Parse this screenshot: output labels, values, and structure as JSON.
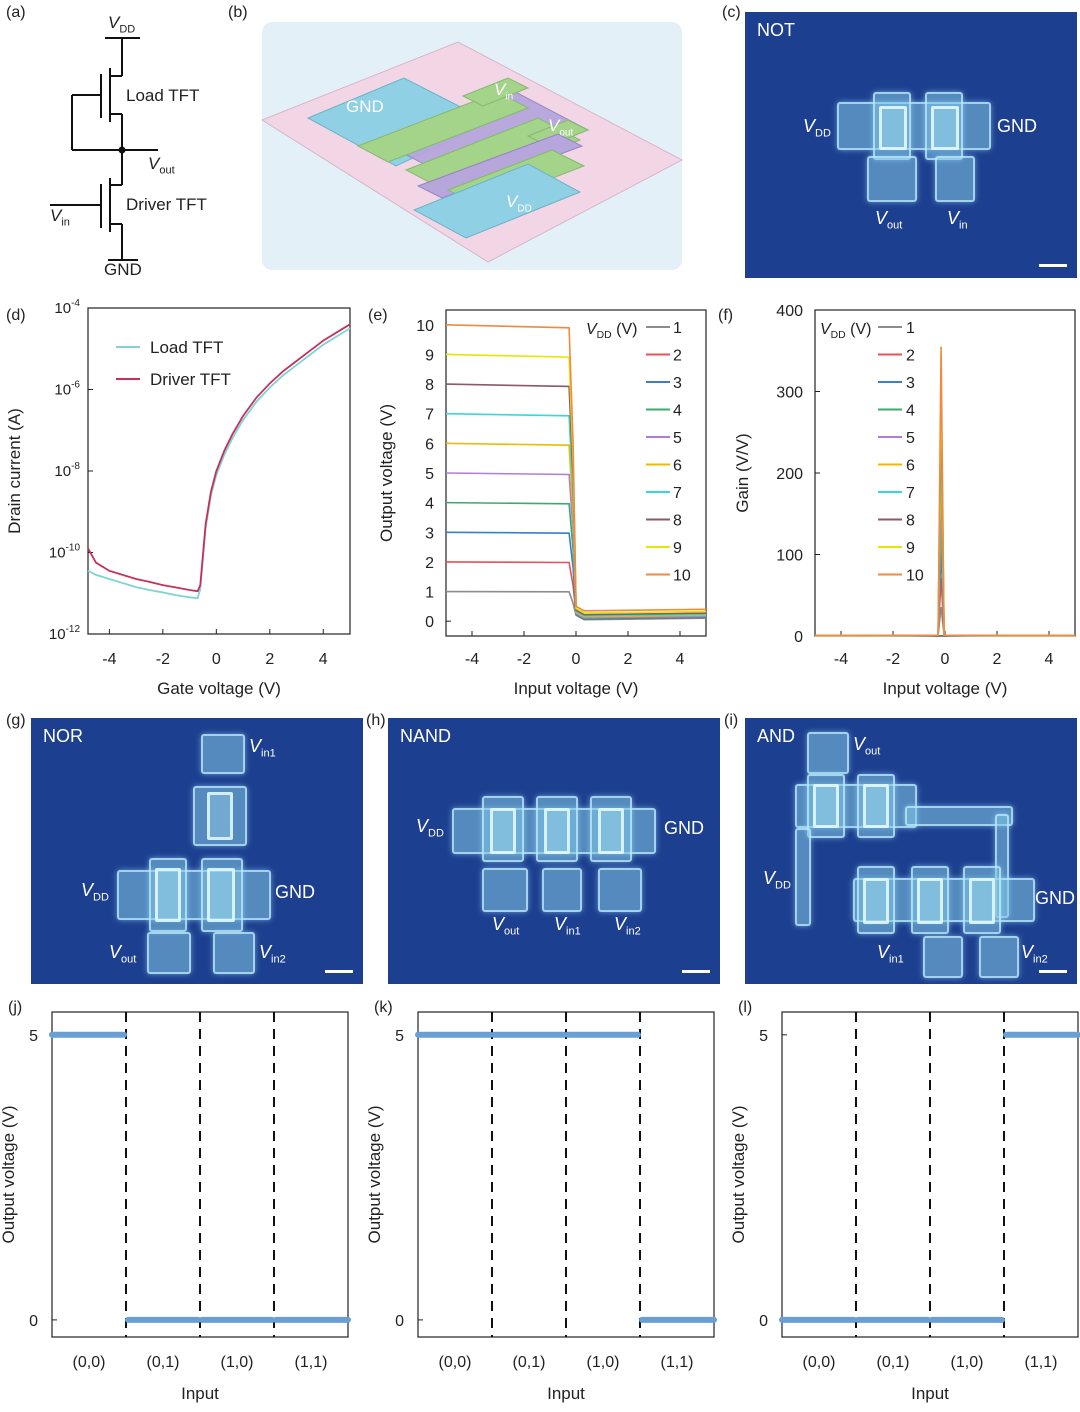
{
  "panels": {
    "a": {
      "label": "(a)",
      "vdd": "V",
      "vdd_sub": "DD",
      "load": "Load TFT",
      "vout": "V",
      "vout_sub": "out",
      "vin": "V",
      "vin_sub": "in",
      "driver": "Driver TFT",
      "gnd": "GND"
    },
    "b": {
      "label": "(b)",
      "gnd": "GND",
      "vin": "V",
      "vin_sub": "in",
      "vout": "V",
      "vout_sub": "out",
      "vdd": "V",
      "vdd_sub": "DD"
    },
    "c": {
      "label": "(c)",
      "title": "NOT",
      "vdd": "V",
      "vdd_sub": "DD",
      "gnd": "GND",
      "vout": "V",
      "vout_sub": "out",
      "vin": "V",
      "vin_sub": "in"
    },
    "g": {
      "label": "(g)",
      "title": "NOR",
      "vin1": "V",
      "vin1_sub": "in1",
      "vdd": "V",
      "vdd_sub": "DD",
      "gnd": "GND",
      "vout": "V",
      "vout_sub": "out",
      "vin2": "V",
      "vin2_sub": "in2"
    },
    "h": {
      "label": "(h)",
      "title": "NAND",
      "vdd": "V",
      "vdd_sub": "DD",
      "gnd": "GND",
      "vout": "V",
      "vout_sub": "out",
      "vin1": "V",
      "vin1_sub": "in1",
      "vin2": "V",
      "vin2_sub": "in2"
    },
    "i": {
      "label": "(i)",
      "title": "AND",
      "vout": "V",
      "vout_sub": "out",
      "vdd": "V",
      "vdd_sub": "DD",
      "gnd": "GND",
      "vin1": "V",
      "vin1_sub": "in1",
      "vin2": "V",
      "vin2_sub": "in2"
    }
  },
  "colors": {
    "micro_bg": "#1d3f8f",
    "load_tft": "#7fd3d6",
    "driver_tft": "#c8305a",
    "logic_trace": "#6a9fd4",
    "vdd_series": [
      "#8c8c8c",
      "#e8505a",
      "#3a7fc8",
      "#3aaa70",
      "#b07cd8",
      "#f0b800",
      "#36d8d8",
      "#8a5a6a",
      "#e6e600",
      "#f08a40"
    ]
  },
  "chart_data": [
    {
      "panel": "(d)",
      "type": "line",
      "xlabel": "Gate voltage (V)",
      "ylabel": "Drain current (A)",
      "xlim": [
        -4.8,
        5
      ],
      "ylim_log10": [
        -12,
        -4
      ],
      "y_scale": "log",
      "xticks": [
        "-4",
        "-2",
        "0",
        "2",
        "4"
      ],
      "yticks": [
        {
          "base": "10",
          "exp": "-4"
        },
        {
          "base": "10",
          "exp": "-6"
        },
        {
          "base": "10",
          "exp": "-8"
        },
        {
          "base": "10",
          "exp": "-10"
        },
        {
          "base": "10",
          "exp": "-12"
        }
      ],
      "legend_position": "top-left",
      "series": [
        {
          "name": "Load TFT",
          "x": [
            -4.8,
            -4.5,
            -4.0,
            -3.5,
            -3.0,
            -2.5,
            -2.0,
            -1.5,
            -1.0,
            -0.7,
            -0.6,
            -0.4,
            -0.2,
            0.0,
            0.3,
            0.6,
            1.0,
            1.5,
            2.0,
            2.5,
            3.0,
            3.5,
            4.0,
            4.5,
            5.0
          ],
          "y_log10": [
            -10.45,
            -10.55,
            -10.65,
            -10.75,
            -10.85,
            -10.92,
            -10.98,
            -11.05,
            -11.1,
            -11.12,
            -10.9,
            -9.4,
            -8.6,
            -8.1,
            -7.6,
            -7.2,
            -6.75,
            -6.3,
            -5.95,
            -5.65,
            -5.4,
            -5.15,
            -4.9,
            -4.7,
            -4.5
          ]
        },
        {
          "name": "Driver TFT",
          "x": [
            -4.8,
            -4.5,
            -4.0,
            -3.5,
            -3.0,
            -2.5,
            -2.0,
            -1.5,
            -1.0,
            -0.7,
            -0.6,
            -0.4,
            -0.2,
            0.0,
            0.3,
            0.6,
            1.0,
            1.5,
            2.0,
            2.5,
            3.0,
            3.5,
            4.0,
            4.5,
            5.0
          ],
          "y_log10": [
            -9.9,
            -10.25,
            -10.45,
            -10.55,
            -10.65,
            -10.72,
            -10.8,
            -10.86,
            -10.92,
            -10.95,
            -10.8,
            -9.3,
            -8.5,
            -8.0,
            -7.5,
            -7.1,
            -6.65,
            -6.2,
            -5.85,
            -5.55,
            -5.3,
            -5.05,
            -4.8,
            -4.6,
            -4.4
          ]
        }
      ]
    },
    {
      "panel": "(e)",
      "type": "line",
      "xlabel": "Input voltage (V)",
      "ylabel": "Output voltage (V)",
      "xlim": [
        -5,
        5
      ],
      "ylim": [
        -0.5,
        10.5
      ],
      "xticks": [
        "-4",
        "-2",
        "0",
        "2",
        "4"
      ],
      "yticks": [
        "0",
        "1",
        "2",
        "3",
        "4",
        "5",
        "6",
        "7",
        "8",
        "9",
        "10"
      ],
      "legend_title": "V",
      "legend_title_sub": "DD",
      "legend_title_unit": " (V)",
      "legend_position": "top-right",
      "switch_x": -0.15,
      "series": [
        {
          "name": "1",
          "high": 1,
          "low": 0.05
        },
        {
          "name": "2",
          "high": 2,
          "low": 0.07
        },
        {
          "name": "3",
          "high": 3,
          "low": 0.08
        },
        {
          "name": "4",
          "high": 4,
          "low": 0.1
        },
        {
          "name": "5",
          "high": 5,
          "low": 0.12
        },
        {
          "name": "6",
          "high": 6,
          "low": 0.15
        },
        {
          "name": "7",
          "high": 7,
          "low": 0.18
        },
        {
          "name": "8",
          "high": 8,
          "low": 0.22
        },
        {
          "name": "9",
          "high": 9,
          "low": 0.28
        },
        {
          "name": "10",
          "high": 10,
          "low": 0.35
        }
      ]
    },
    {
      "panel": "(f)",
      "type": "line",
      "xlabel": "Input voltage (V)",
      "ylabel": "Gain (V/V)",
      "xlim": [
        -5,
        5
      ],
      "ylim": [
        0,
        400
      ],
      "xticks": [
        "-4",
        "-2",
        "0",
        "2",
        "4"
      ],
      "yticks": [
        "0",
        "100",
        "200",
        "300",
        "400"
      ],
      "legend_title": "V",
      "legend_title_sub": "DD",
      "legend_title_unit": " (V)",
      "legend_position": "top-left",
      "peak_x": -0.15,
      "peak_gain": 355,
      "series": [
        "1",
        "2",
        "3",
        "4",
        "5",
        "6",
        "7",
        "8",
        "9",
        "10"
      ]
    },
    {
      "panel": "(j)",
      "type": "line",
      "xlabel": "Input",
      "ylabel": "Output voltage (V)",
      "ylim": [
        -0.3,
        5.4
      ],
      "yticks": [
        "0",
        "5"
      ],
      "categories": [
        "(0,0)",
        "(0,1)",
        "(1,0)",
        "(1,1)"
      ],
      "values": [
        5,
        0,
        0,
        0
      ]
    },
    {
      "panel": "(k)",
      "type": "line",
      "xlabel": "Input",
      "ylabel": "Output voltage (V)",
      "ylim": [
        -0.3,
        5.4
      ],
      "yticks": [
        "0",
        "5"
      ],
      "categories": [
        "(0,0)",
        "(0,1)",
        "(1,0)",
        "(1,1)"
      ],
      "values": [
        5,
        5,
        5,
        0
      ]
    },
    {
      "panel": "(l)",
      "type": "line",
      "xlabel": "Input",
      "ylabel": "Output voltage (V)",
      "ylim": [
        -0.3,
        5.4
      ],
      "yticks": [
        "0",
        "5"
      ],
      "categories": [
        "(0,0)",
        "(0,1)",
        "(1,0)",
        "(1,1)"
      ],
      "values": [
        0,
        0,
        0,
        5
      ]
    }
  ]
}
